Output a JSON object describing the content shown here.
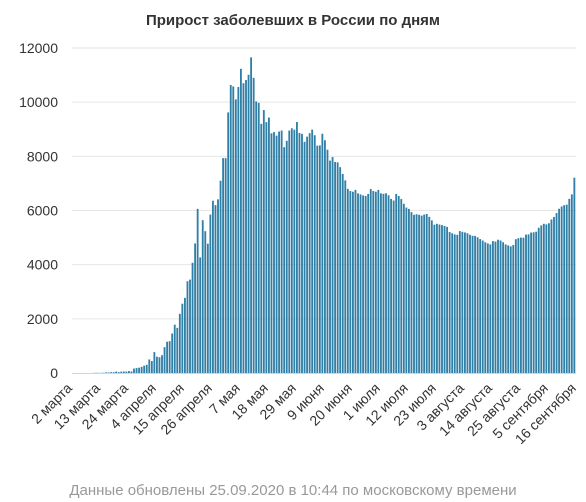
{
  "chart_data": {
    "type": "bar",
    "title": "Прирост заболевших в России по дням",
    "footer": "Данные обновлены 25.09.2020 в 10:44 по московскому времени",
    "xlabel": "",
    "ylabel": "",
    "ylim": [
      0,
      12000
    ],
    "yticks": [
      0,
      2000,
      4000,
      6000,
      8000,
      10000,
      12000
    ],
    "grid": true,
    "legend": "none",
    "bar_color": "#2f7fa6",
    "x_tick_labels": [
      {
        "index": 0,
        "label": "2 марта"
      },
      {
        "index": 11,
        "label": "13 марта"
      },
      {
        "index": 22,
        "label": "24 марта"
      },
      {
        "index": 33,
        "label": "4 апреля"
      },
      {
        "index": 44,
        "label": "15 апреля"
      },
      {
        "index": 55,
        "label": "26 апреля"
      },
      {
        "index": 66,
        "label": "7 мая"
      },
      {
        "index": 77,
        "label": "18 мая"
      },
      {
        "index": 88,
        "label": "29 мая"
      },
      {
        "index": 99,
        "label": "9 июня"
      },
      {
        "index": 110,
        "label": "20 июня"
      },
      {
        "index": 121,
        "label": "1 июля"
      },
      {
        "index": 132,
        "label": "12 июля"
      },
      {
        "index": 143,
        "label": "23 июля"
      },
      {
        "index": 154,
        "label": "3 августа"
      },
      {
        "index": 165,
        "label": "14 августа"
      },
      {
        "index": 176,
        "label": "25 августа"
      },
      {
        "index": 187,
        "label": "5 сентября"
      },
      {
        "index": 198,
        "label": "16 сентября"
      }
    ],
    "values": [
      1,
      0,
      1,
      0,
      0,
      0,
      0,
      0,
      3,
      10,
      7,
      6,
      11,
      25,
      20,
      29,
      30,
      52,
      33,
      52,
      53,
      54,
      71,
      57,
      163,
      182,
      196,
      228,
      270,
      302,
      500,
      440,
      771,
      601,
      582,
      658,
      954,
      1154,
      1175,
      1459,
      1786,
      1667,
      2186,
      2558,
      2774,
      3388,
      3448,
      4070,
      4785,
      6060,
      4268,
      5642,
      5236,
      4774,
      5849,
      6361,
      6198,
      6411,
      7099,
      7933,
      7933,
      9623,
      10633,
      10581,
      10102,
      10559,
      11231,
      10699,
      10817,
      11012,
      11656,
      10899,
      10028,
      9974,
      9200,
      9709,
      9263,
      9434,
      8849,
      8894,
      8764,
      8915,
      8952,
      8338,
      8572,
      8952,
      9035,
      8985,
      9268,
      8863,
      8831,
      8536,
      8726,
      8855,
      8987,
      8779,
      8394,
      8404,
      8835,
      8595,
      8246,
      7843,
      7972,
      7790,
      7779,
      7600,
      7350,
      7113,
      6800,
      6719,
      6693,
      6760,
      6632,
      6595,
      6556,
      6536,
      6611,
      6791,
      6719,
      6693,
      6760,
      6632,
      6615,
      6635,
      6562,
      6428,
      6368,
      6611,
      6537,
      6422,
      6248,
      6109,
      6060,
      5940,
      5842,
      5862,
      5841,
      5811,
      5849,
      5871,
      5765,
      5635,
      5475,
      5509,
      5482,
      5462,
      5427,
      5395,
      5204,
      5159,
      5118,
      5102,
      5241,
      5212,
      5189,
      5159,
      5102,
      5065,
      5061,
      5010,
      4945,
      4890,
      4828,
      4785,
      4748,
      4870,
      4852,
      4921,
      4892,
      4828,
      4748,
      4711,
      4676,
      4729,
      4941,
      4980,
      4999,
      4995,
      5110,
      5118,
      5185,
      5195,
      5218,
      5363,
      5449,
      5509,
      5488,
      5529,
      5670,
      5762,
      5905,
      6065,
      6148,
      6196,
      6215,
      6431,
      6595,
      7212
    ]
  }
}
